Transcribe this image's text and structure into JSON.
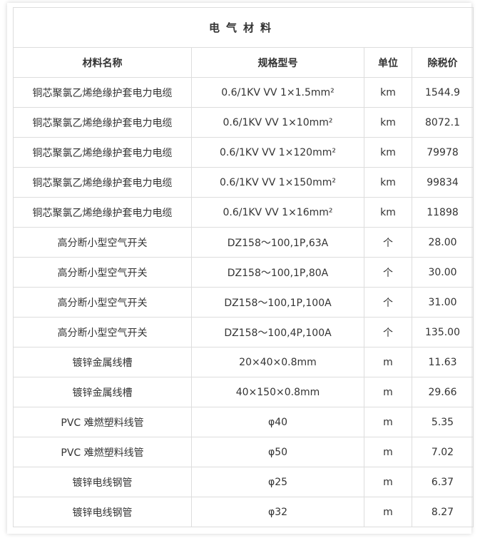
{
  "table": {
    "title": "电气材料",
    "header": [
      "材料名称",
      "规格型号",
      "单位",
      "除税价"
    ],
    "rows": [
      [
        "铜芯聚氯乙烯绝缘护套电力电缆",
        "0.6/1KV VV 1×1.5mm²",
        "km",
        "1544.9"
      ],
      [
        "铜芯聚氯乙烯绝缘护套电力电缆",
        "0.6/1KV VV 1×10mm²",
        "km",
        "8072.1"
      ],
      [
        "铜芯聚氯乙烯绝缘护套电力电缆",
        "0.6/1KV VV 1×120mm²",
        "km",
        "79978"
      ],
      [
        "铜芯聚氯乙烯绝缘护套电力电缆",
        "0.6/1KV VV 1×150mm²",
        "km",
        "99834"
      ],
      [
        "铜芯聚氯乙烯绝缘护套电力电缆",
        "0.6/1KV VV 1×16mm²",
        "km",
        "11898"
      ],
      [
        "高分断小型空气开关",
        "DZ158～100,1P,63A",
        "个",
        "28.00"
      ],
      [
        "高分断小型空气开关",
        "DZ158～100,1P,80A",
        "个",
        "30.00"
      ],
      [
        "高分断小型空气开关",
        "DZ158～100,1P,100A",
        "个",
        "31.00"
      ],
      [
        "高分断小型空气开关",
        "DZ158～100,4P,100A",
        "个",
        "135.00"
      ],
      [
        "镀锌金属线槽",
        "20×40×0.8mm",
        "m",
        "11.63"
      ],
      [
        "镀锌金属线槽",
        "40×150×0.8mm",
        "m",
        "29.66"
      ],
      [
        "PVC 难燃塑料线管",
        "φ40",
        "m",
        "5.35"
      ],
      [
        "PVC 难燃塑料线管",
        "φ50",
        "m",
        "7.02"
      ],
      [
        "镀锌电线钢管",
        "φ25",
        "m",
        "6.37"
      ],
      [
        "镀锌电线钢管",
        "φ32",
        "m",
        "8.27"
      ]
    ]
  }
}
